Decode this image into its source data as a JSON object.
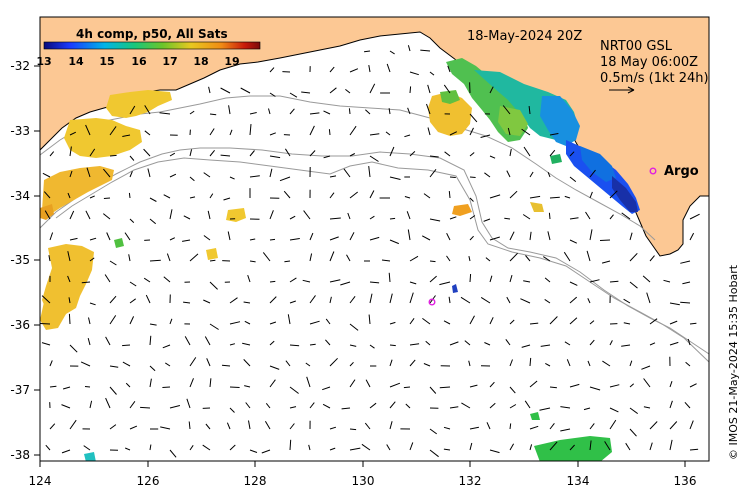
{
  "colorbar": {
    "title": "4h comp, p50, All Sats",
    "ticks": [
      "13",
      "14",
      "15",
      "16",
      "17",
      "18",
      "19"
    ],
    "colors": [
      "#0a0a7a",
      "#1a3aff",
      "#00b4e8",
      "#19c77a",
      "#6cc52a",
      "#e8c820",
      "#f08c14",
      "#c81a0a",
      "#7a0a0a"
    ]
  },
  "header": {
    "timestamp": "18-May-2024 20Z",
    "product": "NRT00 GSL",
    "product_time": "18 May 06:00Z",
    "scale_note": "0.5m/s (1kt 24h)"
  },
  "map": {
    "x_ticks": [
      "124",
      "126",
      "128",
      "130",
      "132",
      "134",
      "136"
    ],
    "y_ticks": [
      "-32",
      "-33",
      "-34",
      "-35",
      "-36",
      "-37",
      "-38"
    ],
    "land_color": "#fcc894",
    "coast_color": "#000000",
    "bathymetry_color": "#9a9a9a"
  },
  "markers": {
    "argo_label": "Argo",
    "argo_color": "#e020e0"
  },
  "credit": "© IMOS 21-May-2024 15:35 Hobart"
}
